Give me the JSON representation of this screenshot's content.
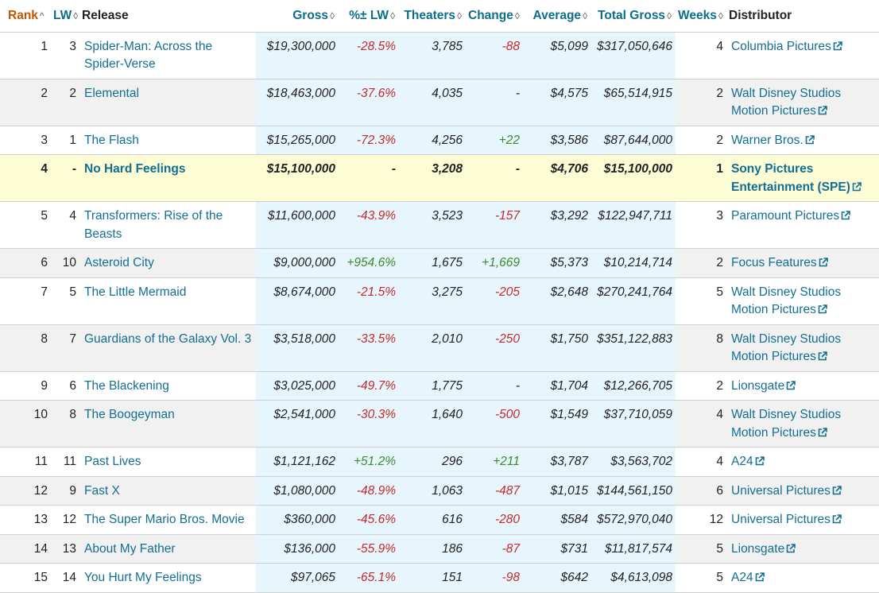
{
  "header": {
    "rank": "Rank",
    "lw": "LW",
    "release": "Release",
    "gross": "Gross",
    "pct_lw": "%± LW",
    "theaters": "Theaters",
    "change": "Change",
    "average": "Average",
    "total_gross": "Total Gross",
    "weeks": "Weeks",
    "distributor": "Distributor"
  },
  "colors": {
    "link": "#136f92",
    "negative": "#c42b2b",
    "positive": "#3e8a2c",
    "sorted_header": "#c45500",
    "shaded_column": "#e6f6fc",
    "highlight_row": "#fcfcd5"
  },
  "icons": {
    "sort": "sort-arrows-icon",
    "external": "external-link-icon"
  },
  "rows": [
    {
      "rank": "1",
      "lw": "3",
      "release": "Spider-Man: Across the Spider-Verse",
      "gross": "$19,300,000",
      "pct_lw": "-28.5%",
      "theaters": "3,785",
      "change": "-88",
      "average": "$5,099",
      "total_gross": "$317,050,646",
      "weeks": "4",
      "distributor": "Columbia Pictures"
    },
    {
      "rank": "2",
      "lw": "2",
      "release": "Elemental",
      "gross": "$18,463,000",
      "pct_lw": "-37.6%",
      "theaters": "4,035",
      "change": "-",
      "average": "$4,575",
      "total_gross": "$65,514,915",
      "weeks": "2",
      "distributor": "Walt Disney Studios Motion Pictures"
    },
    {
      "rank": "3",
      "lw": "1",
      "release": "The Flash",
      "gross": "$15,265,000",
      "pct_lw": "-72.3%",
      "theaters": "4,256",
      "change": "+22",
      "average": "$3,586",
      "total_gross": "$87,644,000",
      "weeks": "2",
      "distributor": "Warner Bros."
    },
    {
      "rank": "4",
      "lw": "-",
      "release": "No Hard Feelings",
      "gross": "$15,100,000",
      "pct_lw": "-",
      "theaters": "3,208",
      "change": "-",
      "average": "$4,706",
      "total_gross": "$15,100,000",
      "weeks": "1",
      "distributor": "Sony Pictures Entertainment (SPE)"
    },
    {
      "rank": "5",
      "lw": "4",
      "release": "Transformers: Rise of the Beasts",
      "gross": "$11,600,000",
      "pct_lw": "-43.9%",
      "theaters": "3,523",
      "change": "-157",
      "average": "$3,292",
      "total_gross": "$122,947,711",
      "weeks": "3",
      "distributor": "Paramount Pictures"
    },
    {
      "rank": "6",
      "lw": "10",
      "release": "Asteroid City",
      "gross": "$9,000,000",
      "pct_lw": "+954.6%",
      "theaters": "1,675",
      "change": "+1,669",
      "average": "$5,373",
      "total_gross": "$10,214,714",
      "weeks": "2",
      "distributor": "Focus Features"
    },
    {
      "rank": "7",
      "lw": "5",
      "release": "The Little Mermaid",
      "gross": "$8,674,000",
      "pct_lw": "-21.5%",
      "theaters": "3,275",
      "change": "-205",
      "average": "$2,648",
      "total_gross": "$270,241,764",
      "weeks": "5",
      "distributor": "Walt Disney Studios Motion Pictures"
    },
    {
      "rank": "8",
      "lw": "7",
      "release": "Guardians of the Galaxy Vol. 3",
      "gross": "$3,518,000",
      "pct_lw": "-33.5%",
      "theaters": "2,010",
      "change": "-250",
      "average": "$1,750",
      "total_gross": "$351,122,883",
      "weeks": "8",
      "distributor": "Walt Disney Studios Motion Pictures"
    },
    {
      "rank": "9",
      "lw": "6",
      "release": "The Blackening",
      "gross": "$3,025,000",
      "pct_lw": "-49.7%",
      "theaters": "1,775",
      "change": "-",
      "average": "$1,704",
      "total_gross": "$12,266,705",
      "weeks": "2",
      "distributor": "Lionsgate"
    },
    {
      "rank": "10",
      "lw": "8",
      "release": "The Boogeyman",
      "gross": "$2,541,000",
      "pct_lw": "-30.3%",
      "theaters": "1,640",
      "change": "-500",
      "average": "$1,549",
      "total_gross": "$37,710,059",
      "weeks": "4",
      "distributor": "Walt Disney Studios Motion Pictures"
    },
    {
      "rank": "11",
      "lw": "11",
      "release": "Past Lives",
      "gross": "$1,121,162",
      "pct_lw": "+51.2%",
      "theaters": "296",
      "change": "+211",
      "average": "$3,787",
      "total_gross": "$3,563,702",
      "weeks": "4",
      "distributor": "A24"
    },
    {
      "rank": "12",
      "lw": "9",
      "release": "Fast X",
      "gross": "$1,080,000",
      "pct_lw": "-48.9%",
      "theaters": "1,063",
      "change": "-487",
      "average": "$1,015",
      "total_gross": "$144,561,150",
      "weeks": "6",
      "distributor": "Universal Pictures"
    },
    {
      "rank": "13",
      "lw": "12",
      "release": "The Super Mario Bros. Movie",
      "gross": "$360,000",
      "pct_lw": "-45.6%",
      "theaters": "616",
      "change": "-280",
      "average": "$584",
      "total_gross": "$572,970,040",
      "weeks": "12",
      "distributor": "Universal Pictures"
    },
    {
      "rank": "14",
      "lw": "13",
      "release": "About My Father",
      "gross": "$136,000",
      "pct_lw": "-55.9%",
      "theaters": "186",
      "change": "-87",
      "average": "$731",
      "total_gross": "$11,817,574",
      "weeks": "5",
      "distributor": "Lionsgate"
    },
    {
      "rank": "15",
      "lw": "14",
      "release": "You Hurt My Feelings",
      "gross": "$97,065",
      "pct_lw": "-65.1%",
      "theaters": "151",
      "change": "-98",
      "average": "$642",
      "total_gross": "$4,613,098",
      "weeks": "5",
      "distributor": "A24"
    }
  ]
}
